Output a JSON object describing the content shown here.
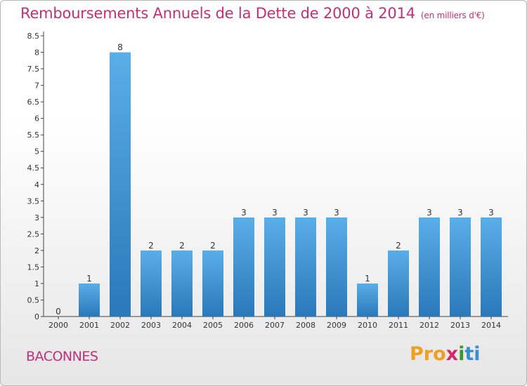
{
  "header": {
    "title": "Remboursements Annuels de la Dette de 2000 à 2014",
    "subtitle": "(en milliers d'€)"
  },
  "footer": {
    "commune": "BACONNES",
    "logo": [
      "Pro",
      "x",
      "i",
      "ti"
    ]
  },
  "colors": {
    "title": "#c0307a",
    "bar_top": "#5aaee8",
    "bar_bottom": "#2a78b8"
  },
  "chart_data": {
    "type": "bar",
    "title": "Remboursements Annuels de la Dette de 2000 à 2014",
    "xlabel": "",
    "ylabel": "",
    "categories": [
      "2000",
      "2001",
      "2002",
      "2003",
      "2004",
      "2005",
      "2006",
      "2007",
      "2008",
      "2009",
      "2010",
      "2011",
      "2012",
      "2013",
      "2014"
    ],
    "values": [
      0,
      1,
      8,
      2,
      2,
      2,
      3,
      3,
      3,
      3,
      1,
      2,
      3,
      3,
      3
    ],
    "data_labels": [
      "0",
      "1",
      "8",
      "2",
      "2",
      "2",
      "3",
      "3",
      "3",
      "3",
      "1",
      "2",
      "3",
      "3",
      "3"
    ],
    "ylim": [
      0,
      8.5
    ],
    "yticks": [
      0,
      0.5,
      1,
      1.5,
      2,
      2.5,
      3,
      3.5,
      4,
      4.5,
      5,
      5.5,
      6,
      6.5,
      7,
      7.5,
      8,
      8.5
    ],
    "ytick_labels": [
      "0",
      "0.5",
      "1",
      "1.5",
      "2",
      "2.5",
      "3",
      "3.5",
      "4",
      "4.5",
      "5",
      "5.5",
      "6",
      "6.5",
      "7",
      "7.5",
      "8",
      "8.5"
    ],
    "grid": false,
    "legend": "none"
  }
}
